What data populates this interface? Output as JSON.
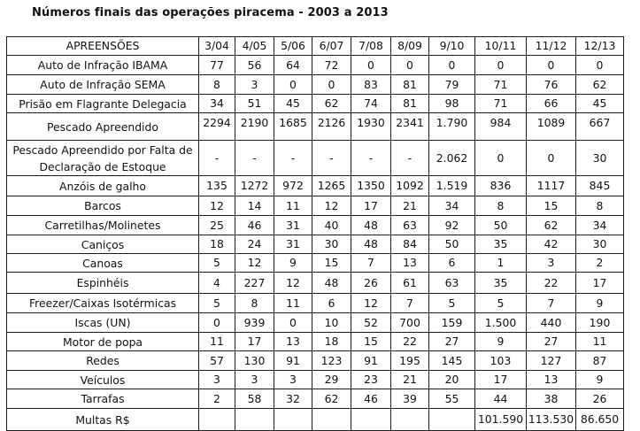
{
  "title": "Números finais das operações piracema - 2003 a 2013",
  "table": {
    "header": {
      "label": "APREENSÕES",
      "years": [
        "3/04",
        "4/05",
        "5/06",
        "6/07",
        "7/08",
        "8/09",
        "9/10",
        "10/11",
        "11/12",
        "12/13"
      ]
    },
    "rows": [
      {
        "label": "Auto de Infração IBAMA",
        "values": [
          "77",
          "56",
          "64",
          "72",
          "0",
          "0",
          "0",
          "0",
          "0",
          "0"
        ]
      },
      {
        "label": "Auto de Infração SEMA",
        "values": [
          "8",
          "3",
          "0",
          "0",
          "83",
          "81",
          "79",
          "71",
          "76",
          "62"
        ]
      },
      {
        "label": "Prisão em Flagrante Delegacia",
        "values": [
          "34",
          "51",
          "45",
          "62",
          "74",
          "81",
          "98",
          "71",
          "66",
          "45"
        ]
      },
      {
        "label": "Pescado Apreendido",
        "values": [
          "2294",
          "2190",
          "1685",
          "2126",
          "1930",
          "2341",
          "1.790",
          "984",
          "1089",
          "667"
        ]
      },
      {
        "label": "Pescado Apreendido por Falta de Declaração de Estoque",
        "values": [
          "-",
          "-",
          "-",
          "-",
          "-",
          "-",
          "2.062",
          "0",
          "0",
          "30"
        ]
      },
      {
        "label": "Anzóis de galho",
        "values": [
          "135",
          "1272",
          "972",
          "1265",
          "1350",
          "1092",
          "1.519",
          "836",
          "1117",
          "845"
        ]
      },
      {
        "label": "Barcos",
        "values": [
          "12",
          "14",
          "11",
          "12",
          "17",
          "21",
          "34",
          "8",
          "15",
          "8"
        ]
      },
      {
        "label": "Carretilhas/Molinetes",
        "values": [
          "25",
          "46",
          "31",
          "40",
          "48",
          "63",
          "92",
          "50",
          "62",
          "34"
        ]
      },
      {
        "label": "Caniços",
        "values": [
          "18",
          "24",
          "31",
          "30",
          "48",
          "84",
          "50",
          "35",
          "42",
          "30"
        ]
      },
      {
        "label": "Canoas",
        "values": [
          "5",
          "12",
          "9",
          "15",
          "7",
          "13",
          "6",
          "1",
          "3",
          "2"
        ]
      },
      {
        "label": "Espinhéis",
        "values": [
          "4",
          "227",
          "12",
          "48",
          "26",
          "61",
          "63",
          "35",
          "22",
          "17"
        ]
      },
      {
        "label": "Freezer/Caixas Isotérmicas",
        "values": [
          "5",
          "8",
          "11",
          "6",
          "12",
          "7",
          "5",
          "5",
          "7",
          "9"
        ]
      },
      {
        "label": "Iscas (UN)",
        "values": [
          "0",
          "939",
          "0",
          "10",
          "52",
          "700",
          "159",
          "1.500",
          "440",
          "190"
        ]
      },
      {
        "label": "Motor de popa",
        "values": [
          "11",
          "17",
          "13",
          "18",
          "15",
          "22",
          "27",
          "9",
          "27",
          "11"
        ]
      },
      {
        "label": "Redes",
        "values": [
          "57",
          "130",
          "91",
          "123",
          "91",
          "195",
          "145",
          "103",
          "127",
          "87"
        ]
      },
      {
        "label": "Veículos",
        "values": [
          "3",
          "3",
          "3",
          "29",
          "23",
          "21",
          "20",
          "17",
          "13",
          "9"
        ]
      },
      {
        "label": "Tarrafas",
        "values": [
          "2",
          "58",
          "32",
          "62",
          "46",
          "39",
          "55",
          "44",
          "38",
          "26"
        ]
      },
      {
        "label": "Multas R$",
        "values": [
          "",
          "",
          "",
          "",
          "",
          "",
          "",
          "101.590",
          "113.530",
          "86.650"
        ]
      }
    ]
  }
}
